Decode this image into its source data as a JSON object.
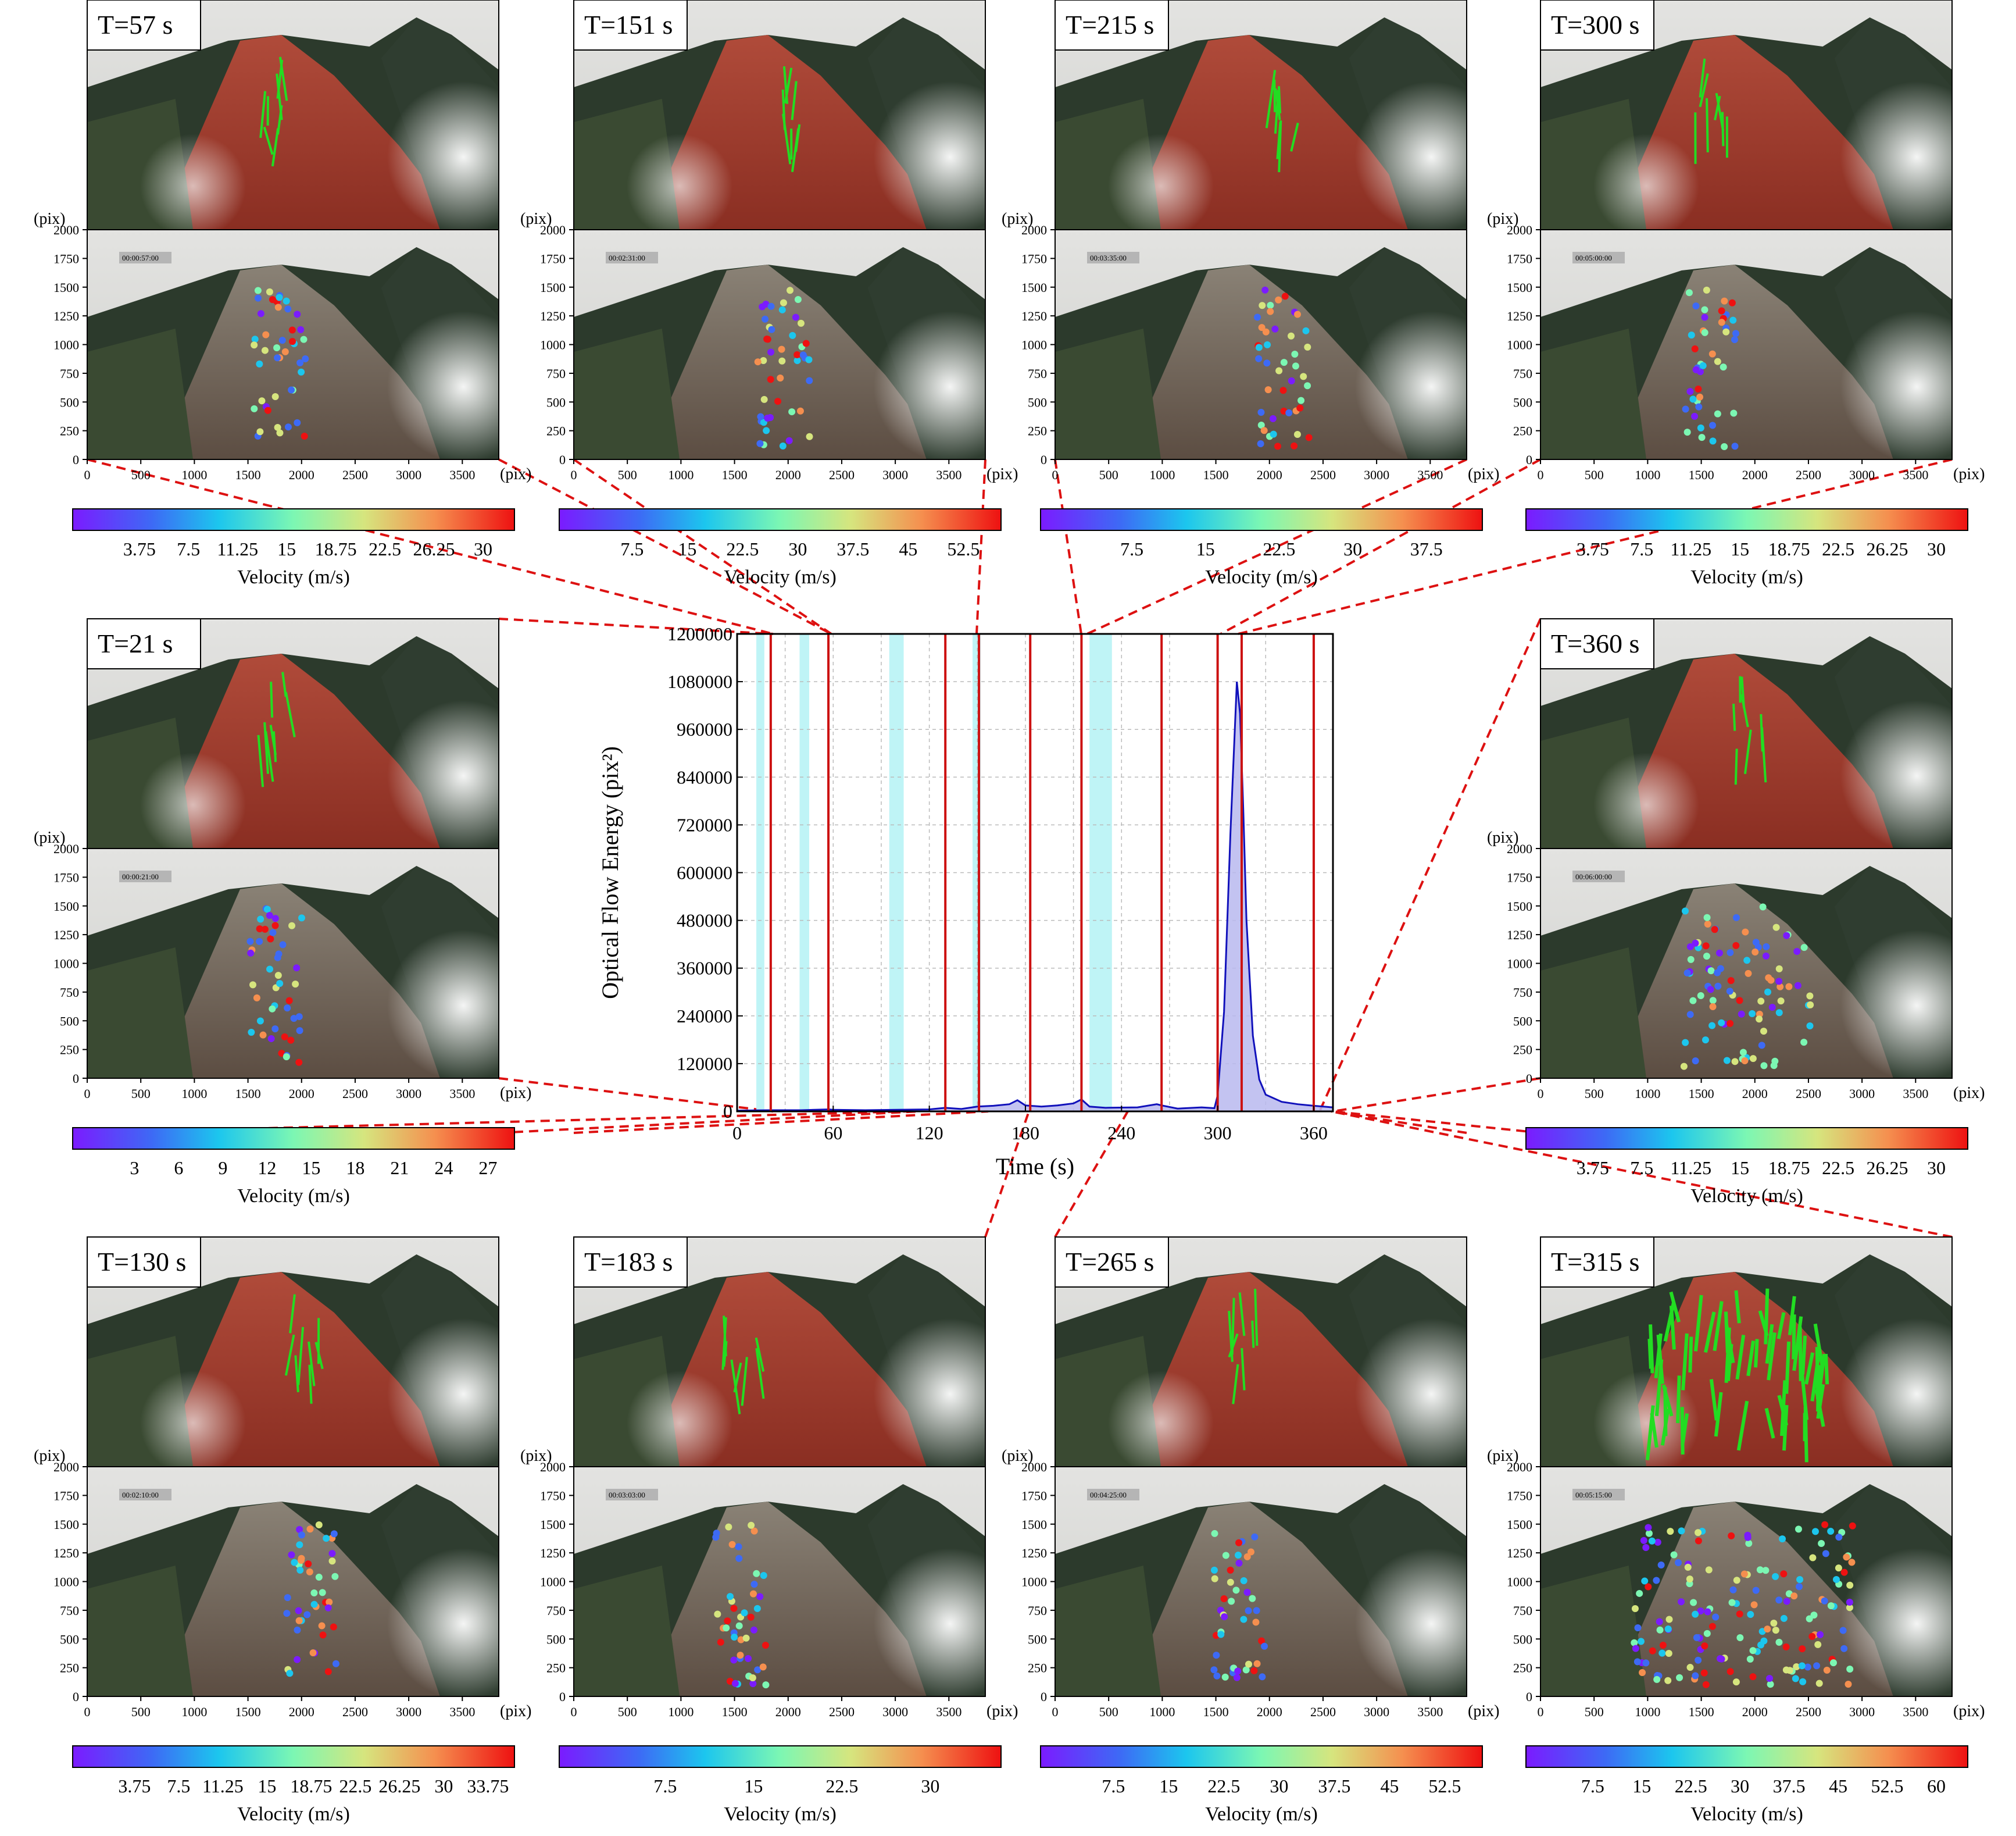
{
  "axis_unit": "(pix)",
  "y_ticks": [
    "2000",
    "1750",
    "1500",
    "1250",
    "1000",
    "750",
    "500",
    "250",
    "0"
  ],
  "x_ticks": [
    "0",
    "500",
    "1000",
    "1500",
    "2000",
    "2500",
    "3000",
    "3500"
  ],
  "velocity_label": "Velocity (m/s)",
  "colors": {
    "connector": "#dd1111",
    "peak": "#1111bb",
    "band": "#bff4f6",
    "marker": "#cc1111",
    "flow": "#22dd22"
  },
  "panels": [
    {
      "id": "t57",
      "title": "T=57 s",
      "timestamp": "00:00:57:00",
      "cbar_ticks": [
        "3.75",
        "7.5",
        "11.25",
        "15",
        "18.75",
        "22.5",
        "26.25",
        "30"
      ]
    },
    {
      "id": "t151",
      "title": "T=151 s",
      "timestamp": "00:02:31:00",
      "cbar_ticks": [
        "7.5",
        "15",
        "22.5",
        "30",
        "37.5",
        "45",
        "52.5"
      ]
    },
    {
      "id": "t215",
      "title": "T=215 s",
      "timestamp": "00:03:35:00",
      "cbar_ticks": [
        "7.5",
        "15",
        "22.5",
        "30",
        "37.5"
      ]
    },
    {
      "id": "t300",
      "title": "T=300 s",
      "timestamp": "00:05:00:00",
      "cbar_ticks": [
        "3.75",
        "7.5",
        "11.25",
        "15",
        "18.75",
        "22.5",
        "26.25",
        "30"
      ]
    },
    {
      "id": "t21",
      "title": "T=21 s",
      "timestamp": "00:00:21:00",
      "cbar_ticks": [
        "3",
        "6",
        "9",
        "12",
        "15",
        "18",
        "21",
        "24",
        "27"
      ]
    },
    {
      "id": "t360",
      "title": "T=360 s",
      "timestamp": "00:06:00:00",
      "cbar_ticks": [
        "3.75",
        "7.5",
        "11.25",
        "15",
        "18.75",
        "22.5",
        "26.25",
        "30"
      ]
    },
    {
      "id": "t130",
      "title": "T=130 s",
      "timestamp": "00:02:10:00",
      "cbar_ticks": [
        "3.75",
        "7.5",
        "11.25",
        "15",
        "18.75",
        "22.5",
        "26.25",
        "30",
        "33.75"
      ]
    },
    {
      "id": "t183",
      "title": "T=183 s",
      "timestamp": "00:03:03:00",
      "cbar_ticks": [
        "7.5",
        "15",
        "22.5",
        "30"
      ]
    },
    {
      "id": "t265",
      "title": "T=265 s",
      "timestamp": "00:04:25:00",
      "cbar_ticks": [
        "7.5",
        "15",
        "22.5",
        "30",
        "37.5",
        "45",
        "52.5"
      ]
    },
    {
      "id": "t315",
      "title": "T=315 s",
      "timestamp": "00:05:15:00",
      "cbar_ticks": [
        "7.5",
        "15",
        "22.5",
        "30",
        "37.5",
        "45",
        "52.5",
        "60"
      ]
    }
  ],
  "chart_data": {
    "type": "area",
    "xlabel": "Time (s)",
    "ylabel": "Optical Flow Energy (pix²)",
    "xlim": [
      0,
      372
    ],
    "ylim": [
      0,
      1200000
    ],
    "x_ticks": [
      0,
      60,
      120,
      180,
      240,
      300,
      360
    ],
    "y_ticks": [
      0,
      120000,
      240000,
      360000,
      480000,
      600000,
      720000,
      840000,
      960000,
      1080000,
      1200000
    ],
    "grid": true,
    "marker_times": [
      21,
      57,
      130,
      151,
      183,
      215,
      265,
      300,
      315,
      360
    ],
    "shaded_intervals": [
      [
        12,
        17
      ],
      [
        39,
        45
      ],
      [
        95,
        104
      ],
      [
        147,
        152
      ],
      [
        220,
        234
      ]
    ],
    "series": [
      {
        "x": [
          0,
          20,
          40,
          57,
          60,
          80,
          100,
          120,
          130,
          140,
          150,
          160,
          170,
          175,
          180,
          190,
          200,
          210,
          215,
          220,
          230,
          250,
          262,
          265,
          275,
          290,
          298,
          300,
          304,
          308,
          312,
          314,
          316,
          318,
          322,
          326,
          330,
          340,
          350,
          360,
          372
        ],
        "y": [
          2000,
          3000,
          3000,
          5000,
          4000,
          3000,
          4000,
          5000,
          9000,
          6000,
          12000,
          14000,
          18000,
          28000,
          15000,
          12000,
          15000,
          20000,
          30000,
          12000,
          9000,
          10000,
          18000,
          15000,
          7000,
          10000,
          8000,
          40000,
          250000,
          700000,
          1080000,
          1000000,
          760000,
          480000,
          190000,
          80000,
          42000,
          24000,
          18000,
          14000,
          10000
        ]
      }
    ]
  }
}
